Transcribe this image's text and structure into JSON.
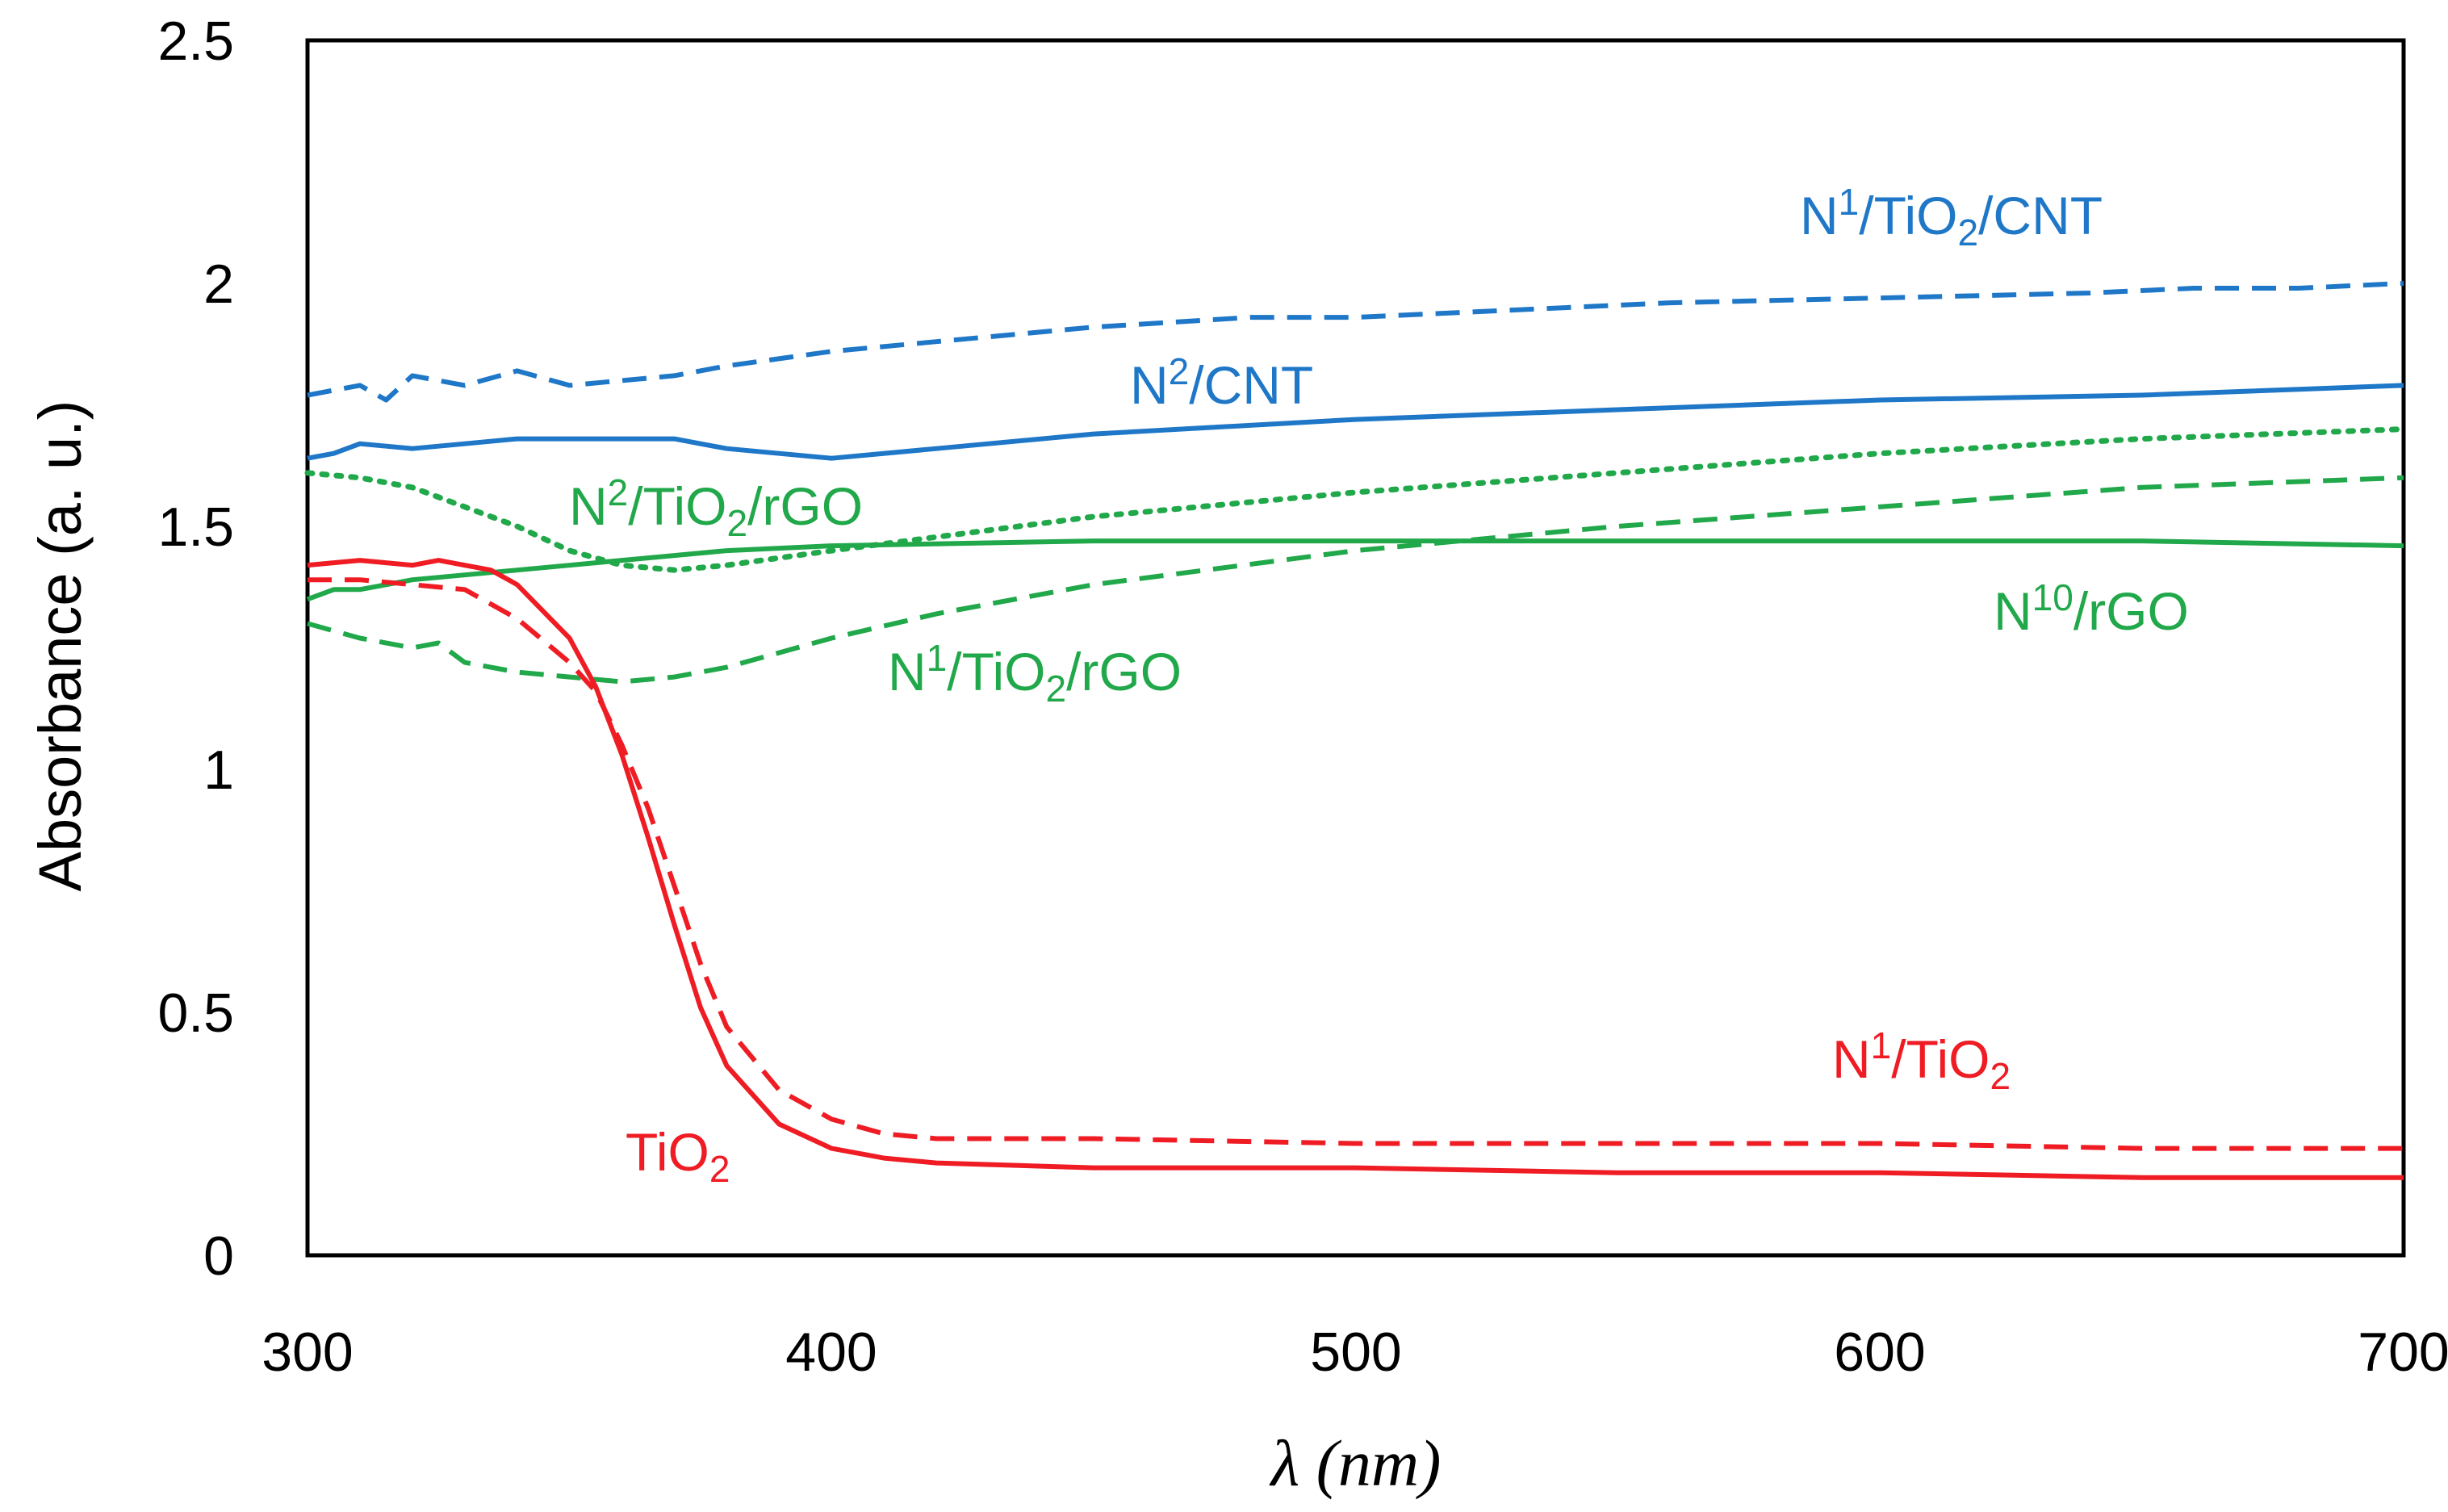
{
  "chart_data": {
    "type": "line",
    "xlabel": "λ (nm)",
    "ylabel": "Absorbance (a. u.)",
    "xlim": [
      300,
      700
    ],
    "ylim": [
      0,
      2.5
    ],
    "xticks": [
      "300",
      "400",
      "500",
      "600",
      "700"
    ],
    "yticks": [
      "0",
      "0.5",
      "1",
      "1.5",
      "2",
      "2.5"
    ],
    "grid": false,
    "legend": "inline labels",
    "series": [
      {
        "label_parts": [
          {
            "t": "N"
          },
          {
            "t": "1",
            "s": "sup"
          },
          {
            "t": "/TiO"
          },
          {
            "t": "2",
            "s": "sub"
          },
          {
            "t": "/CNT"
          }
        ],
        "color": "#1f77c8",
        "style": "dashed",
        "x": [
          300,
          310,
          315,
          320,
          330,
          340,
          350,
          360,
          370,
          380,
          400,
          420,
          450,
          480,
          500,
          540,
          560,
          600,
          640,
          660,
          680,
          700
        ],
        "y": [
          1.77,
          1.79,
          1.76,
          1.81,
          1.79,
          1.82,
          1.79,
          1.8,
          1.81,
          1.83,
          1.86,
          1.88,
          1.91,
          1.93,
          1.93,
          1.95,
          1.96,
          1.97,
          1.98,
          1.99,
          1.99,
          2.0
        ]
      },
      {
        "label_parts": [
          {
            "t": "N"
          },
          {
            "t": "2",
            "s": "sup"
          },
          {
            "t": "/CNT"
          }
        ],
        "color": "#1f77c8",
        "style": "solid",
        "x": [
          300,
          305,
          310,
          320,
          330,
          340,
          350,
          360,
          370,
          380,
          390,
          400,
          420,
          450,
          500,
          550,
          600,
          650,
          700
        ],
        "y": [
          1.64,
          1.65,
          1.67,
          1.66,
          1.67,
          1.68,
          1.68,
          1.68,
          1.68,
          1.66,
          1.65,
          1.64,
          1.66,
          1.69,
          1.72,
          1.74,
          1.76,
          1.77,
          1.79
        ]
      },
      {
        "label_parts": [
          {
            "t": "N"
          },
          {
            "t": "2",
            "s": "sup"
          },
          {
            "t": "/TiO"
          },
          {
            "t": "2",
            "s": "sub"
          },
          {
            "t": "/rGO"
          }
        ],
        "color": "#21a84a",
        "style": "dotted",
        "x": [
          300,
          310,
          320,
          330,
          340,
          350,
          360,
          370,
          380,
          400,
          450,
          500,
          550,
          600,
          650,
          700
        ],
        "y": [
          1.61,
          1.6,
          1.58,
          1.54,
          1.5,
          1.45,
          1.42,
          1.41,
          1.42,
          1.45,
          1.52,
          1.57,
          1.61,
          1.65,
          1.68,
          1.7
        ]
      },
      {
        "label_parts": [
          {
            "t": "N"
          },
          {
            "t": "1",
            "s": "sup"
          },
          {
            "t": "/TiO"
          },
          {
            "t": "2",
            "s": "sub"
          },
          {
            "t": "/rGO"
          }
        ],
        "color": "#21a84a",
        "style": "dashed",
        "x": [
          300,
          310,
          320,
          325,
          330,
          340,
          350,
          360,
          370,
          380,
          400,
          420,
          450,
          500,
          550,
          600,
          650,
          700
        ],
        "y": [
          1.3,
          1.27,
          1.25,
          1.26,
          1.22,
          1.2,
          1.19,
          1.18,
          1.19,
          1.21,
          1.27,
          1.32,
          1.38,
          1.45,
          1.5,
          1.54,
          1.58,
          1.6
        ]
      },
      {
        "label_parts": [
          {
            "t": "N"
          },
          {
            "t": "10",
            "s": "sup"
          },
          {
            "t": "/rGO"
          }
        ],
        "color": "#21a84a",
        "style": "solid",
        "x": [
          300,
          305,
          310,
          320,
          330,
          340,
          350,
          360,
          370,
          380,
          400,
          450,
          500,
          550,
          600,
          650,
          700
        ],
        "y": [
          1.35,
          1.37,
          1.37,
          1.39,
          1.4,
          1.41,
          1.42,
          1.43,
          1.44,
          1.45,
          1.46,
          1.47,
          1.47,
          1.47,
          1.47,
          1.47,
          1.46
        ]
      },
      {
        "label_parts": [
          {
            "t": "N"
          },
          {
            "t": "1",
            "s": "sup"
          },
          {
            "t": "/TiO"
          },
          {
            "t": "2",
            "s": "sub"
          }
        ],
        "color": "#ef1c24",
        "style": "dashed",
        "x": [
          300,
          310,
          320,
          330,
          340,
          350,
          355,
          360,
          365,
          370,
          375,
          380,
          390,
          400,
          410,
          420,
          450,
          500,
          550,
          600,
          650,
          700
        ],
        "y": [
          1.39,
          1.39,
          1.38,
          1.37,
          1.31,
          1.22,
          1.16,
          1.05,
          0.92,
          0.76,
          0.6,
          0.47,
          0.34,
          0.28,
          0.25,
          0.24,
          0.24,
          0.23,
          0.23,
          0.23,
          0.22,
          0.22
        ]
      },
      {
        "label_parts": [
          {
            "t": "TiO"
          },
          {
            "t": "2",
            "s": "sub"
          }
        ],
        "color": "#ef1c24",
        "style": "solid",
        "x": [
          300,
          310,
          320,
          325,
          330,
          335,
          340,
          350,
          355,
          360,
          365,
          370,
          375,
          380,
          390,
          400,
          410,
          420,
          450,
          500,
          550,
          600,
          650,
          700
        ],
        "y": [
          1.42,
          1.43,
          1.42,
          1.43,
          1.42,
          1.41,
          1.38,
          1.27,
          1.17,
          1.03,
          0.86,
          0.68,
          0.51,
          0.39,
          0.27,
          0.22,
          0.2,
          0.19,
          0.18,
          0.18,
          0.17,
          0.17,
          0.16,
          0.16
        ]
      }
    ]
  }
}
